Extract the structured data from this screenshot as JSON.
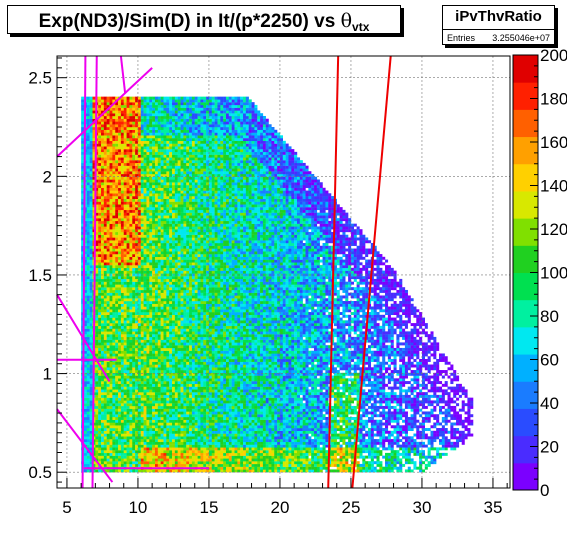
{
  "title": {
    "prefix": "Exp(ND3)/Sim(D) in It/(p*2250) vs  ",
    "symbol": "θ",
    "subscript": "vtx"
  },
  "stats": {
    "name": "iPvThvRatio",
    "entries_label": "Entries",
    "entries_value": "3.255046e+07"
  },
  "chart_data": {
    "type": "heatmap",
    "title": "Exp(ND3)/Sim(D) in It/(p*2250) vs θvtx",
    "xlim": [
      4.3,
      36.2
    ],
    "ylim": [
      0.42,
      2.61
    ],
    "xticks": [
      5,
      10,
      15,
      20,
      25,
      30,
      35
    ],
    "yticks": [
      0.5,
      1,
      1.5,
      2,
      2.5
    ],
    "zlim": [
      0,
      200
    ],
    "zticks": [
      0,
      20,
      40,
      60,
      80,
      100,
      120,
      140,
      160,
      180,
      200
    ],
    "grid": true,
    "colormap": "rainbow",
    "description_shape": "density populated for theta 6 to 33 and ratio 0.5 to 2.4, high counts (150-200) near theta 7-9, ratio 1.6-2.3",
    "overlay_lines": [
      {
        "color": "#e0e",
        "x": [
          6.1,
          6.3
        ],
        "y": [
          0.42,
          2.61
        ]
      },
      {
        "color": "#e0e",
        "x": [
          6.8,
          7.1
        ],
        "y": [
          0.42,
          2.61
        ]
      },
      {
        "color": "#e0e",
        "x": [
          8.8,
          9.1
        ],
        "y": [
          2.61,
          2.42
        ]
      },
      {
        "color": "#e0e",
        "x": [
          4.3,
          11.0
        ],
        "y": [
          2.1,
          2.55
        ]
      },
      {
        "color": "#e0e",
        "x": [
          4.3,
          8.0
        ],
        "y": [
          1.4,
          0.96
        ]
      },
      {
        "color": "#e0e",
        "x": [
          4.3,
          8.5
        ],
        "y": [
          1.07,
          1.07
        ]
      },
      {
        "color": "#e0e",
        "x": [
          4.3,
          8.2
        ],
        "y": [
          0.82,
          0.45
        ]
      },
      {
        "color": "#e0e",
        "x": [
          6.2,
          15.0
        ],
        "y": [
          0.52,
          0.52
        ]
      },
      {
        "color": "#e00",
        "x": [
          23.4,
          24.1
        ],
        "y": [
          0.42,
          2.61
        ]
      },
      {
        "color": "#e00",
        "x": [
          25.1,
          27.8
        ],
        "y": [
          0.42,
          2.61
        ]
      }
    ]
  }
}
